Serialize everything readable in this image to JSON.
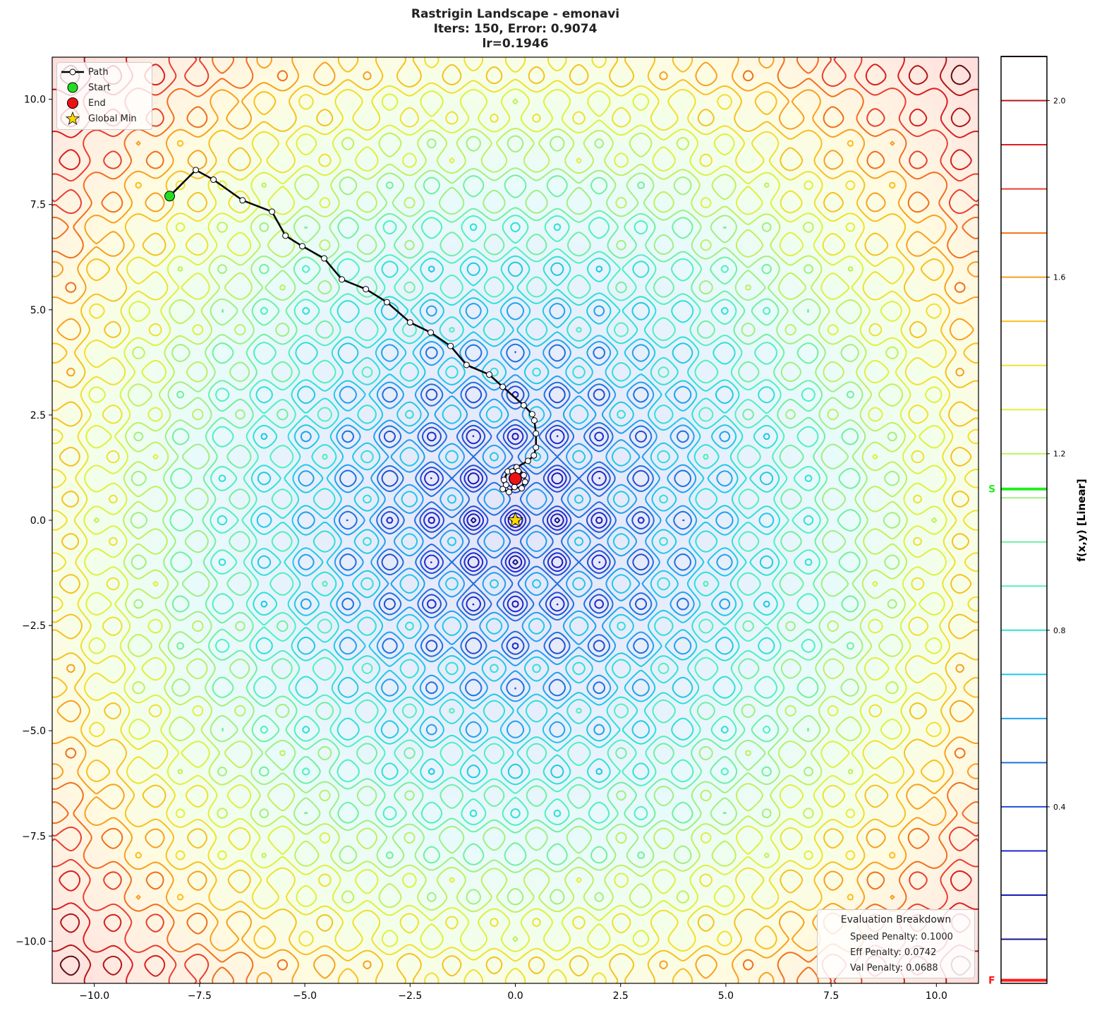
{
  "chart_data": {
    "type": "contour",
    "title": [
      "Rastrigin Landscape - emonavi",
      "Iters: 150, Error: 0.9074",
      "lr=0.1946"
    ],
    "xlim": [
      -11,
      11
    ],
    "ylim": [
      -11,
      11
    ],
    "x_ticks": [
      -10.0,
      -7.5,
      -5.0,
      -2.5,
      0.0,
      2.5,
      5.0,
      7.5,
      10.0
    ],
    "x_tick_labels": [
      "−10.0",
      "−7.5",
      "−5.0",
      "−2.5",
      "0.0",
      "2.5",
      "5.0",
      "7.5",
      "10.0"
    ],
    "y_ticks": [
      -10.0,
      -7.5,
      -5.0,
      -2.5,
      0.0,
      2.5,
      5.0,
      7.5,
      10.0
    ],
    "y_tick_labels": [
      "−10.0",
      "−7.5",
      "−5.0",
      "−2.5",
      "0.0",
      "2.5",
      "5.0",
      "7.5",
      "10.0"
    ],
    "grid": false,
    "contour_levels": [
      0.1,
      0.2,
      0.3,
      0.4,
      0.5,
      0.6,
      0.7,
      0.8,
      0.9,
      1.0,
      1.1,
      1.2,
      1.3,
      1.4,
      1.5,
      1.6,
      1.7,
      1.8,
      1.9,
      2.0,
      2.1
    ],
    "contour_colors": [
      "#14148c",
      "#1a1ab4",
      "#1e2ad0",
      "#2050d0",
      "#1f70e0",
      "#20a0f0",
      "#20c8e8",
      "#30e0d8",
      "#50f0c0",
      "#70f0a0",
      "#a0f080",
      "#c0f060",
      "#e0f040",
      "#f0e030",
      "#f8c020",
      "#f8a020",
      "#f07020",
      "#e84030",
      "#d82020",
      "#b01818",
      "#601010"
    ],
    "colorbar": {
      "label": "f(x,y) [Linear]",
      "range": [
        0,
        2.1
      ],
      "ticks": [
        0.4,
        0.8,
        1.2,
        1.6,
        2.0
      ],
      "tick_labels": [
        "0.4",
        "0.8",
        "1.2",
        "1.6",
        "2.0"
      ],
      "markers": [
        {
          "label": "S",
          "value": 1.12,
          "color": "#22ee22"
        },
        {
          "label": "F",
          "value": 0.007,
          "color": "#ff1a1a"
        }
      ]
    },
    "path": {
      "name": "Path",
      "x": [
        -8.21,
        -7.59,
        -7.17,
        -6.48,
        -5.78,
        -5.46,
        -5.06,
        -4.54,
        -4.12,
        -3.55,
        -3.05,
        -2.5,
        -2.01,
        -1.54,
        -1.16,
        -0.62,
        -0.3,
        0.2,
        0.4,
        0.45,
        0.49,
        0.49,
        0.44,
        0.3,
        0.03,
        -0.18,
        -0.27,
        -0.22,
        -0.3,
        -0.15,
        -0.02,
        0.15,
        0.23,
        0.2,
        0.07,
        -0.07,
        0.0
      ],
      "y": [
        7.7,
        8.32,
        8.09,
        7.6,
        7.33,
        6.76,
        6.51,
        6.22,
        5.72,
        5.49,
        5.18,
        4.7,
        4.46,
        4.14,
        3.69,
        3.46,
        3.17,
        2.73,
        2.52,
        2.37,
        2.06,
        1.73,
        1.54,
        1.41,
        1.26,
        1.16,
        0.96,
        0.84,
        0.74,
        0.67,
        0.79,
        0.76,
        0.91,
        1.07,
        1.17,
        1.16,
        0.99
      ],
      "color": "#000000"
    },
    "start": {
      "name": "Start",
      "x": -8.21,
      "y": 7.7,
      "color": "#22dd22"
    },
    "end": {
      "name": "End",
      "x": 0.0,
      "y": 0.99,
      "color": "#ee1111"
    },
    "global_min": {
      "name": "Global Min",
      "x": 0.0,
      "y": 0.0,
      "color": "#ffd700"
    },
    "legend": {
      "placement": "top-left",
      "entries": [
        "Path",
        "Start",
        "End",
        "Global Min"
      ]
    }
  },
  "evaluation": {
    "title": "Evaluation Breakdown",
    "lines": [
      "Speed Penalty: 0.1000",
      "Eff Penalty: 0.0742",
      "Val Penalty: 0.0688"
    ]
  }
}
